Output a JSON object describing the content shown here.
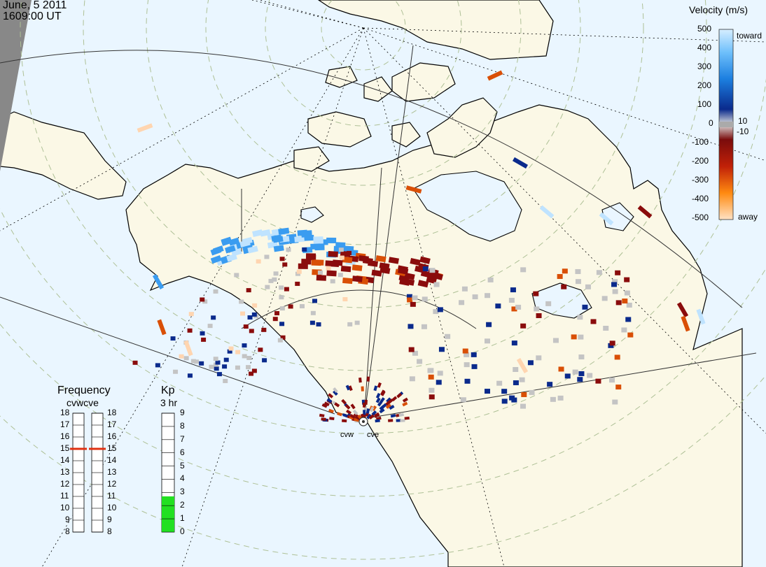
{
  "header": {
    "date": "June, 5 2011",
    "time": "1609:00 UT"
  },
  "velocity_scale": {
    "title": "Velocity (m/s)",
    "ticks": [
      "500",
      "400",
      "300",
      "200",
      "100",
      "0",
      "-100",
      "-200",
      "-300",
      "-400",
      "-500"
    ],
    "toward_label": "toward",
    "away_label": "away",
    "zero_band_labels": [
      "10",
      "-10"
    ],
    "colors": {
      "toward_light": "#bfe3ff",
      "toward_mid": "#3a9cf0",
      "toward_dark": "#0a2a8c",
      "away_dark": "#8a0c0c",
      "away_mid": "#d94f06",
      "away_light": "#ffd5b0",
      "ground_scatter": "#c4c4c4"
    }
  },
  "frequency": {
    "title": "Frequency",
    "subtitle": "cvwcve",
    "ticks": [
      "18",
      "17",
      "16",
      "15",
      "14",
      "13",
      "12",
      "11",
      "10",
      "9",
      "8"
    ],
    "cvw_mhz": 15,
    "cve_mhz": 15,
    "marker_color": "#e03010"
  },
  "kp": {
    "title": "Kp",
    "subtitle": "3 hr",
    "ticks": [
      "9",
      "8",
      "7",
      "6",
      "5",
      "4",
      "3",
      "2",
      "1",
      "0"
    ],
    "value": 3,
    "fill_color": "#22e022"
  },
  "radars": [
    {
      "code": "cvw",
      "label": "cvw"
    },
    {
      "code": "cve",
      "label": "cve"
    }
  ],
  "map_colors": {
    "ocean": "#eaf6ff",
    "land": "#fbf8e6",
    "coast": "#000000",
    "grid": "#b8c9a0"
  }
}
